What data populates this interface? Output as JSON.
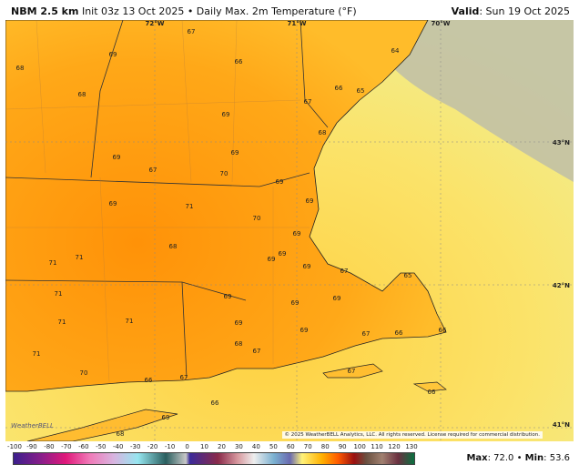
{
  "header": {
    "model": "NBM 2.5 km",
    "init": "Init 03z 13 Oct 2025 • Daily Max. 2m Temperature (°F)",
    "valid_label": "Valid",
    "valid_value": ": Sun 19 Oct 2025"
  },
  "map": {
    "lon_labels": [
      "72°W",
      "71°W",
      "70°W"
    ],
    "lat_labels": [
      "43°N",
      "42°N",
      "41°N"
    ],
    "temperature_labels": [
      67,
      68,
      69,
      66,
      68,
      69,
      67,
      66,
      65,
      64,
      68,
      69,
      69,
      67,
      70,
      69,
      69,
      71,
      69,
      70,
      69,
      68,
      69,
      69,
      71,
      71,
      69,
      67,
      65,
      71,
      69,
      69,
      69,
      71,
      71,
      69,
      69,
      67,
      66,
      66,
      68,
      67,
      71,
      70,
      66,
      67,
      67,
      66,
      66,
      69,
      68
    ],
    "colors": {
      "land_warm": "#ff9a10",
      "land": "#ffb020",
      "ocean": "#ffd84a",
      "ocean_far": "#f5ef8a",
      "gray": "#b8b8a8"
    }
  },
  "logo": "WeatherBELL",
  "copyright": "© 2025 WeatherBELL Analytics, LLC. All rights reserved. License required for commercial distribution.",
  "colorbar": {
    "unit": "°F",
    "ticks": [
      "-100",
      "-90",
      "-80",
      "-70",
      "-60",
      "-50",
      "-40",
      "-30",
      "-20",
      "-10",
      "0",
      "10",
      "20",
      "30",
      "40",
      "50",
      "60",
      "70",
      "80",
      "90",
      "100",
      "110",
      "120",
      "130"
    ]
  },
  "stats": {
    "max_label": "Max",
    "max": ": 72.0 • ",
    "min_label": "Min",
    "min": ": 53.6"
  }
}
